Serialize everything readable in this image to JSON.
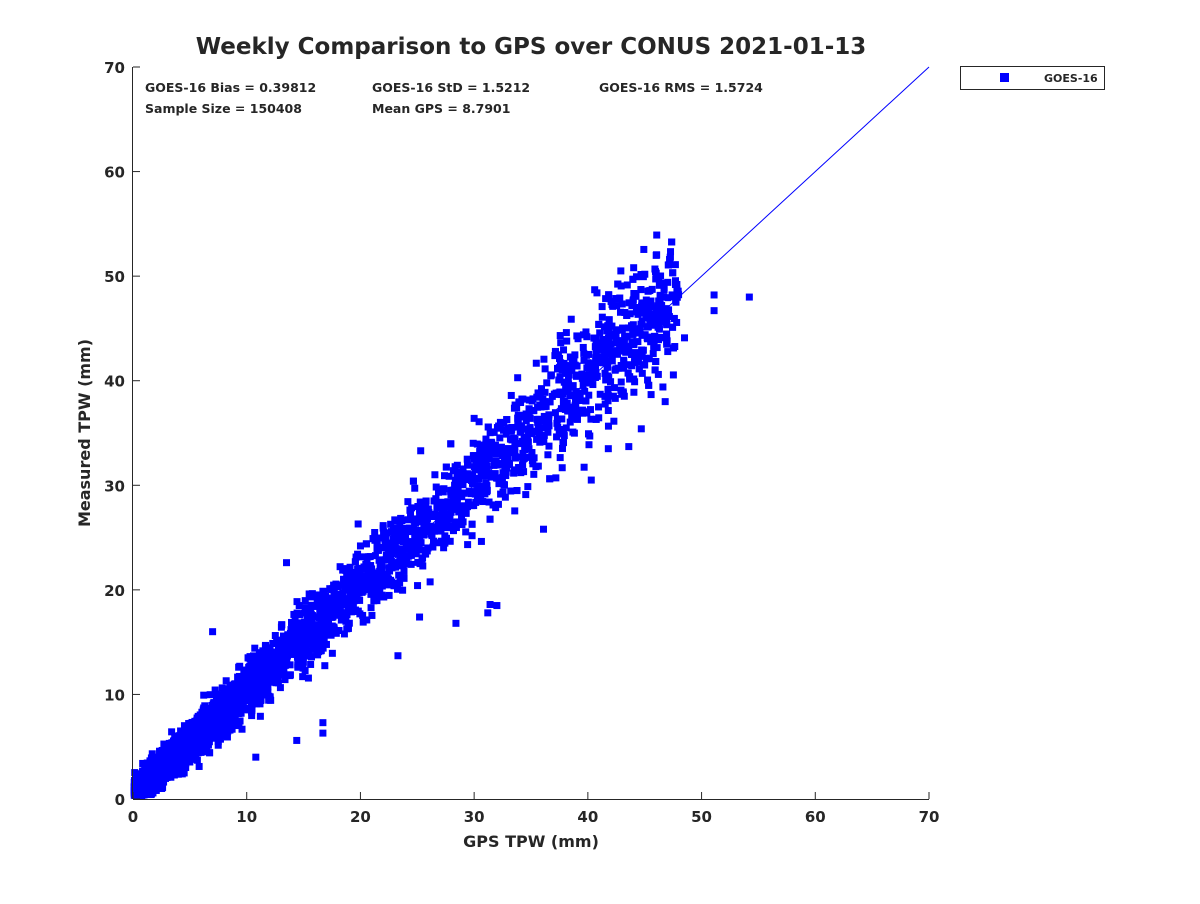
{
  "chart_data": {
    "type": "scatter",
    "title": "Weekly Comparison to GPS over CONUS 2021-01-13",
    "xlabel": "GPS TPW (mm)",
    "ylabel": "Measured TPW (mm)",
    "xlim": [
      0,
      70
    ],
    "ylim": [
      0,
      70
    ],
    "xticks": [
      0,
      10,
      20,
      30,
      40,
      50,
      60,
      70
    ],
    "yticks": [
      0,
      10,
      20,
      30,
      40,
      50,
      60,
      70
    ],
    "grid": false,
    "legend": {
      "placement": "outside-top-right",
      "entries": [
        "GOES-16"
      ]
    },
    "series_color": "#0000ff",
    "reference_line": {
      "label": "1:1",
      "from": [
        0,
        0
      ],
      "to": [
        70,
        70
      ]
    },
    "stats": {
      "bias": "GOES-16 Bias = 0.39812",
      "std": "GOES-16 StD = 1.5212",
      "rms": "GOES-16 RMS = 1.5724",
      "sample_size": "Sample Size = 150408",
      "mean_gps": "Mean GPS = 8.7901"
    },
    "cloud_model": {
      "n_points_drawn": 5000,
      "bias": 0.39812,
      "std": 1.5212,
      "mean_x": 8.7901,
      "x_max": 48
    },
    "series": [
      {
        "name": "GOES-16",
        "points": [
          [
            54.2,
            48.0
          ],
          [
            51.1,
            48.2
          ],
          [
            51.1,
            46.7
          ],
          [
            47.7,
            51.1
          ],
          [
            42.9,
            50.5
          ],
          [
            40.6,
            48.7
          ],
          [
            40.8,
            48.4
          ],
          [
            46.7,
            48.7
          ],
          [
            46.4,
            44.1
          ],
          [
            48.5,
            44.1
          ],
          [
            46.6,
            39.4
          ],
          [
            46.8,
            38.0
          ],
          [
            46.2,
            40.6
          ],
          [
            43.6,
            33.7
          ],
          [
            44.7,
            35.4
          ],
          [
            41.8,
            33.5
          ],
          [
            40.3,
            30.5
          ],
          [
            31.4,
            18.6
          ],
          [
            32.0,
            18.5
          ],
          [
            31.2,
            17.8
          ],
          [
            28.4,
            16.8
          ],
          [
            23.3,
            13.7
          ],
          [
            16.7,
            6.3
          ],
          [
            16.7,
            7.3
          ],
          [
            14.4,
            5.6
          ],
          [
            10.8,
            4.0
          ],
          [
            7.0,
            16.0
          ],
          [
            13.5,
            22.6
          ],
          [
            19.8,
            26.3
          ],
          [
            25.3,
            33.3
          ],
          [
            30.0,
            36.4
          ],
          [
            37.1,
            42.4
          ],
          [
            36.2,
            38.0
          ],
          [
            36.1,
            25.8
          ],
          [
            25.2,
            17.4
          ]
        ]
      }
    ]
  }
}
